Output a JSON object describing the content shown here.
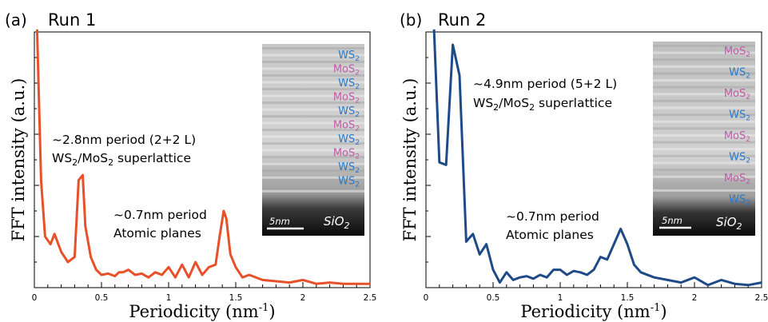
{
  "colors": {
    "run1": "#e8502a",
    "run2": "#1e4b87",
    "ws2_label": "#2a78c8",
    "mos2_label": "#c25aa8"
  },
  "chart_data": [
    {
      "type": "line",
      "panel_label": "(a)",
      "title": "Run 1",
      "xlabel": "Periodicity (nm",
      "xlabel_sup": "-1",
      "xlabel_end": ")",
      "ylabel": "FFT intensity (a.u.)",
      "xlim": [
        0,
        2.5
      ],
      "ylim": [
        0,
        1
      ],
      "x_ticks": [
        "0",
        "0.5",
        "1",
        "1.5",
        "2",
        "2.5"
      ],
      "series": [
        {
          "x": [
            0.02,
            0.05,
            0.08,
            0.12,
            0.15,
            0.2,
            0.25,
            0.3,
            0.33,
            0.36,
            0.38,
            0.42,
            0.46,
            0.5,
            0.55,
            0.6,
            0.63,
            0.66,
            0.7,
            0.75,
            0.8,
            0.85,
            0.9,
            0.95,
            1.0,
            1.05,
            1.1,
            1.15,
            1.2,
            1.25,
            1.3,
            1.35,
            1.38,
            1.41,
            1.43,
            1.46,
            1.5,
            1.55,
            1.6,
            1.7,
            1.8,
            1.9,
            2.0,
            2.1,
            2.2,
            2.3,
            2.4,
            2.5
          ],
          "y": [
            1.02,
            0.42,
            0.2,
            0.17,
            0.21,
            0.14,
            0.1,
            0.12,
            0.42,
            0.44,
            0.24,
            0.12,
            0.07,
            0.05,
            0.055,
            0.045,
            0.06,
            0.06,
            0.07,
            0.05,
            0.055,
            0.04,
            0.06,
            0.05,
            0.08,
            0.04,
            0.09,
            0.04,
            0.1,
            0.05,
            0.08,
            0.09,
            0.2,
            0.3,
            0.27,
            0.13,
            0.08,
            0.04,
            0.05,
            0.03,
            0.025,
            0.02,
            0.03,
            0.015,
            0.02,
            0.015,
            0.015,
            0.015
          ]
        }
      ],
      "annotations": [
        {
          "lines": [
            "~2.8nm period (2+2 L)",
            "WS2/MoS2 superlattice"
          ]
        },
        {
          "lines": [
            "~0.7nm period",
            "Atomic planes"
          ]
        }
      ],
      "inset": {
        "layers": [
          "WS2",
          "MoS2",
          "WS2",
          "MoS2",
          "WS2",
          "MoS2",
          "WS2",
          "MoS2",
          "WS2",
          "WS2"
        ],
        "scale_bar": "5nm",
        "substrate": "SiO2"
      }
    },
    {
      "type": "line",
      "panel_label": "(b)",
      "title": "Run 2",
      "xlabel": "Periodicity (nm",
      "xlabel_sup": "-1",
      "xlabel_end": ")",
      "ylabel": "FFT intensity (a.u.)",
      "xlim": [
        0,
        2.5
      ],
      "ylim": [
        0,
        1
      ],
      "x_ticks": [
        "0",
        "0.5",
        "1",
        "1.5",
        "2",
        "2.5"
      ],
      "series": [
        {
          "x": [
            0.06,
            0.1,
            0.15,
            0.2,
            0.25,
            0.3,
            0.35,
            0.4,
            0.45,
            0.5,
            0.55,
            0.6,
            0.65,
            0.7,
            0.75,
            0.8,
            0.85,
            0.9,
            0.95,
            1.0,
            1.05,
            1.1,
            1.15,
            1.2,
            1.25,
            1.3,
            1.35,
            1.4,
            1.45,
            1.5,
            1.55,
            1.6,
            1.7,
            1.8,
            1.9,
            2.0,
            2.1,
            2.2,
            2.3,
            2.4,
            2.5
          ],
          "y": [
            1.02,
            0.49,
            0.48,
            0.95,
            0.83,
            0.18,
            0.21,
            0.13,
            0.17,
            0.07,
            0.02,
            0.06,
            0.03,
            0.04,
            0.045,
            0.035,
            0.05,
            0.04,
            0.07,
            0.07,
            0.05,
            0.065,
            0.06,
            0.05,
            0.07,
            0.12,
            0.11,
            0.17,
            0.23,
            0.17,
            0.09,
            0.06,
            0.04,
            0.03,
            0.02,
            0.04,
            0.01,
            0.03,
            0.015,
            0.01,
            0.02
          ]
        }
      ],
      "annotations": [
        {
          "lines": [
            "~4.9nm period (5+2 L)",
            "WS2/MoS2 superlattice"
          ]
        },
        {
          "lines": [
            "~0.7nm period",
            "Atomic planes"
          ]
        }
      ],
      "inset": {
        "layers": [
          "MoS2",
          "WS2",
          "MoS2",
          "WS2",
          "MoS2",
          "WS2",
          "MoS2",
          "WS2"
        ],
        "scale_bar": "5nm",
        "substrate": "SiO2"
      }
    }
  ]
}
